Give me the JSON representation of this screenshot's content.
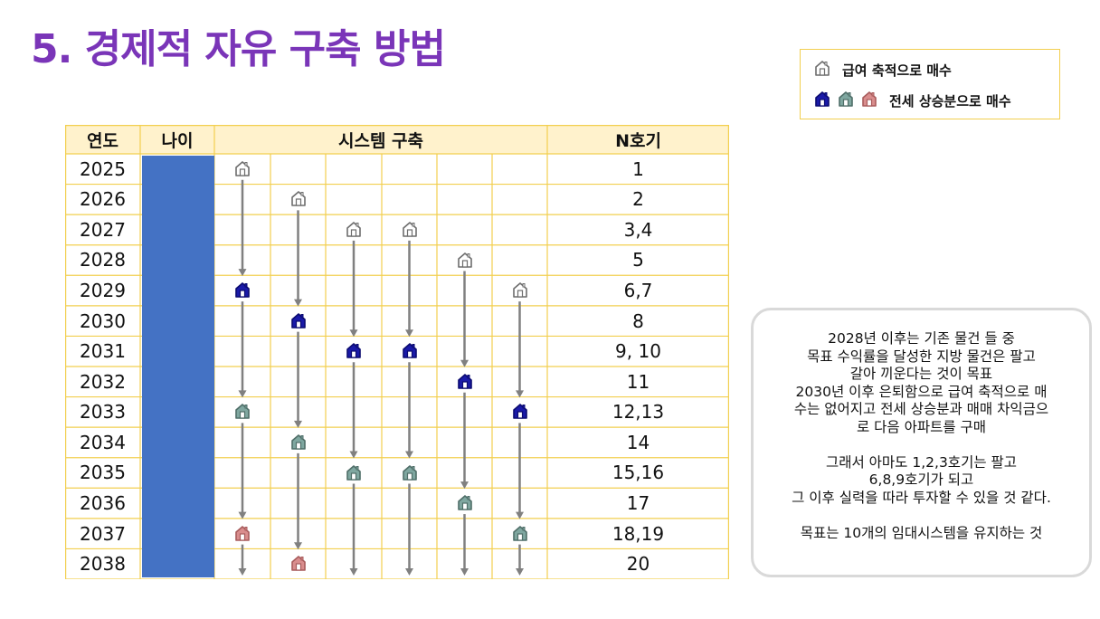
{
  "title": "5. 경제적 자유 구축 방법",
  "legend": {
    "row1_label": "급여 축적으로 매수",
    "row2_label": "전세 상승분으로 매수"
  },
  "table": {
    "headers": {
      "year": "연도",
      "age": "나이",
      "system": "시스템 구축",
      "n": "N호기"
    },
    "years": [
      "2025",
      "2026",
      "2027",
      "2028",
      "2029",
      "2030",
      "2031",
      "2032",
      "2033",
      "2034",
      "2035",
      "2036",
      "2037",
      "2038"
    ],
    "n_values": [
      "1",
      "2",
      "3,4",
      "5",
      "6,7",
      "8",
      "9, 10",
      "11",
      "12,13",
      "14",
      "15,16",
      "17",
      "18,19",
      "20"
    ],
    "age_cell_color": "#4472c4",
    "house_marks": [
      {
        "year_index": 0,
        "column": 0,
        "type": "outline"
      },
      {
        "year_index": 1,
        "column": 1,
        "type": "outline"
      },
      {
        "year_index": 2,
        "column": 2,
        "type": "outline"
      },
      {
        "year_index": 2,
        "column": 3,
        "type": "outline"
      },
      {
        "year_index": 3,
        "column": 4,
        "type": "outline"
      },
      {
        "year_index": 4,
        "column": 0,
        "type": "blue"
      },
      {
        "year_index": 4,
        "column": 5,
        "type": "outline"
      },
      {
        "year_index": 5,
        "column": 1,
        "type": "blue"
      },
      {
        "year_index": 6,
        "column": 2,
        "type": "blue"
      },
      {
        "year_index": 6,
        "column": 3,
        "type": "blue"
      },
      {
        "year_index": 7,
        "column": 4,
        "type": "blue"
      },
      {
        "year_index": 8,
        "column": 0,
        "type": "teal"
      },
      {
        "year_index": 8,
        "column": 5,
        "type": "blue"
      },
      {
        "year_index": 9,
        "column": 1,
        "type": "teal"
      },
      {
        "year_index": 10,
        "column": 2,
        "type": "teal"
      },
      {
        "year_index": 10,
        "column": 3,
        "type": "teal"
      },
      {
        "year_index": 11,
        "column": 4,
        "type": "teal"
      },
      {
        "year_index": 12,
        "column": 0,
        "type": "pink"
      },
      {
        "year_index": 12,
        "column": 5,
        "type": "teal"
      },
      {
        "year_index": 13,
        "column": 1,
        "type": "pink"
      }
    ]
  },
  "explanation": {
    "text": "2028년 이후는 기존 물건 들 중\n목표 수익률을 달성한 지방 물건은 팔고\n갈아 끼운다는 것이 목표\n2030년 이후 은퇴함으로 급여 축적으로 매\n수는 없어지고 전세 상승분과 매매 차익금으\n로 다음 아파트를 구매\n\n그래서 아마도 1,2,3호기는 팔고\n6,8,9호기가 되고\n그 이후 실력을 따라 투자할 수 있을 것 같다.\n\n목표는 10개의 임대시스템을 유지하는 것"
  },
  "colors": {
    "title": "#7a35b8",
    "grid_border": "#f2cf4f",
    "header_fill": "#fff2cc",
    "arrow": "#808080",
    "house_outline": "#6d6d6d",
    "house_blue": "#1a1aa8",
    "house_teal": "#7fa7a0",
    "house_pink": "#d98d8d"
  },
  "icons": {
    "outline": "house-outline-icon",
    "blue": "house-blue-icon",
    "teal": "house-teal-icon",
    "pink": "house-pink-icon"
  }
}
